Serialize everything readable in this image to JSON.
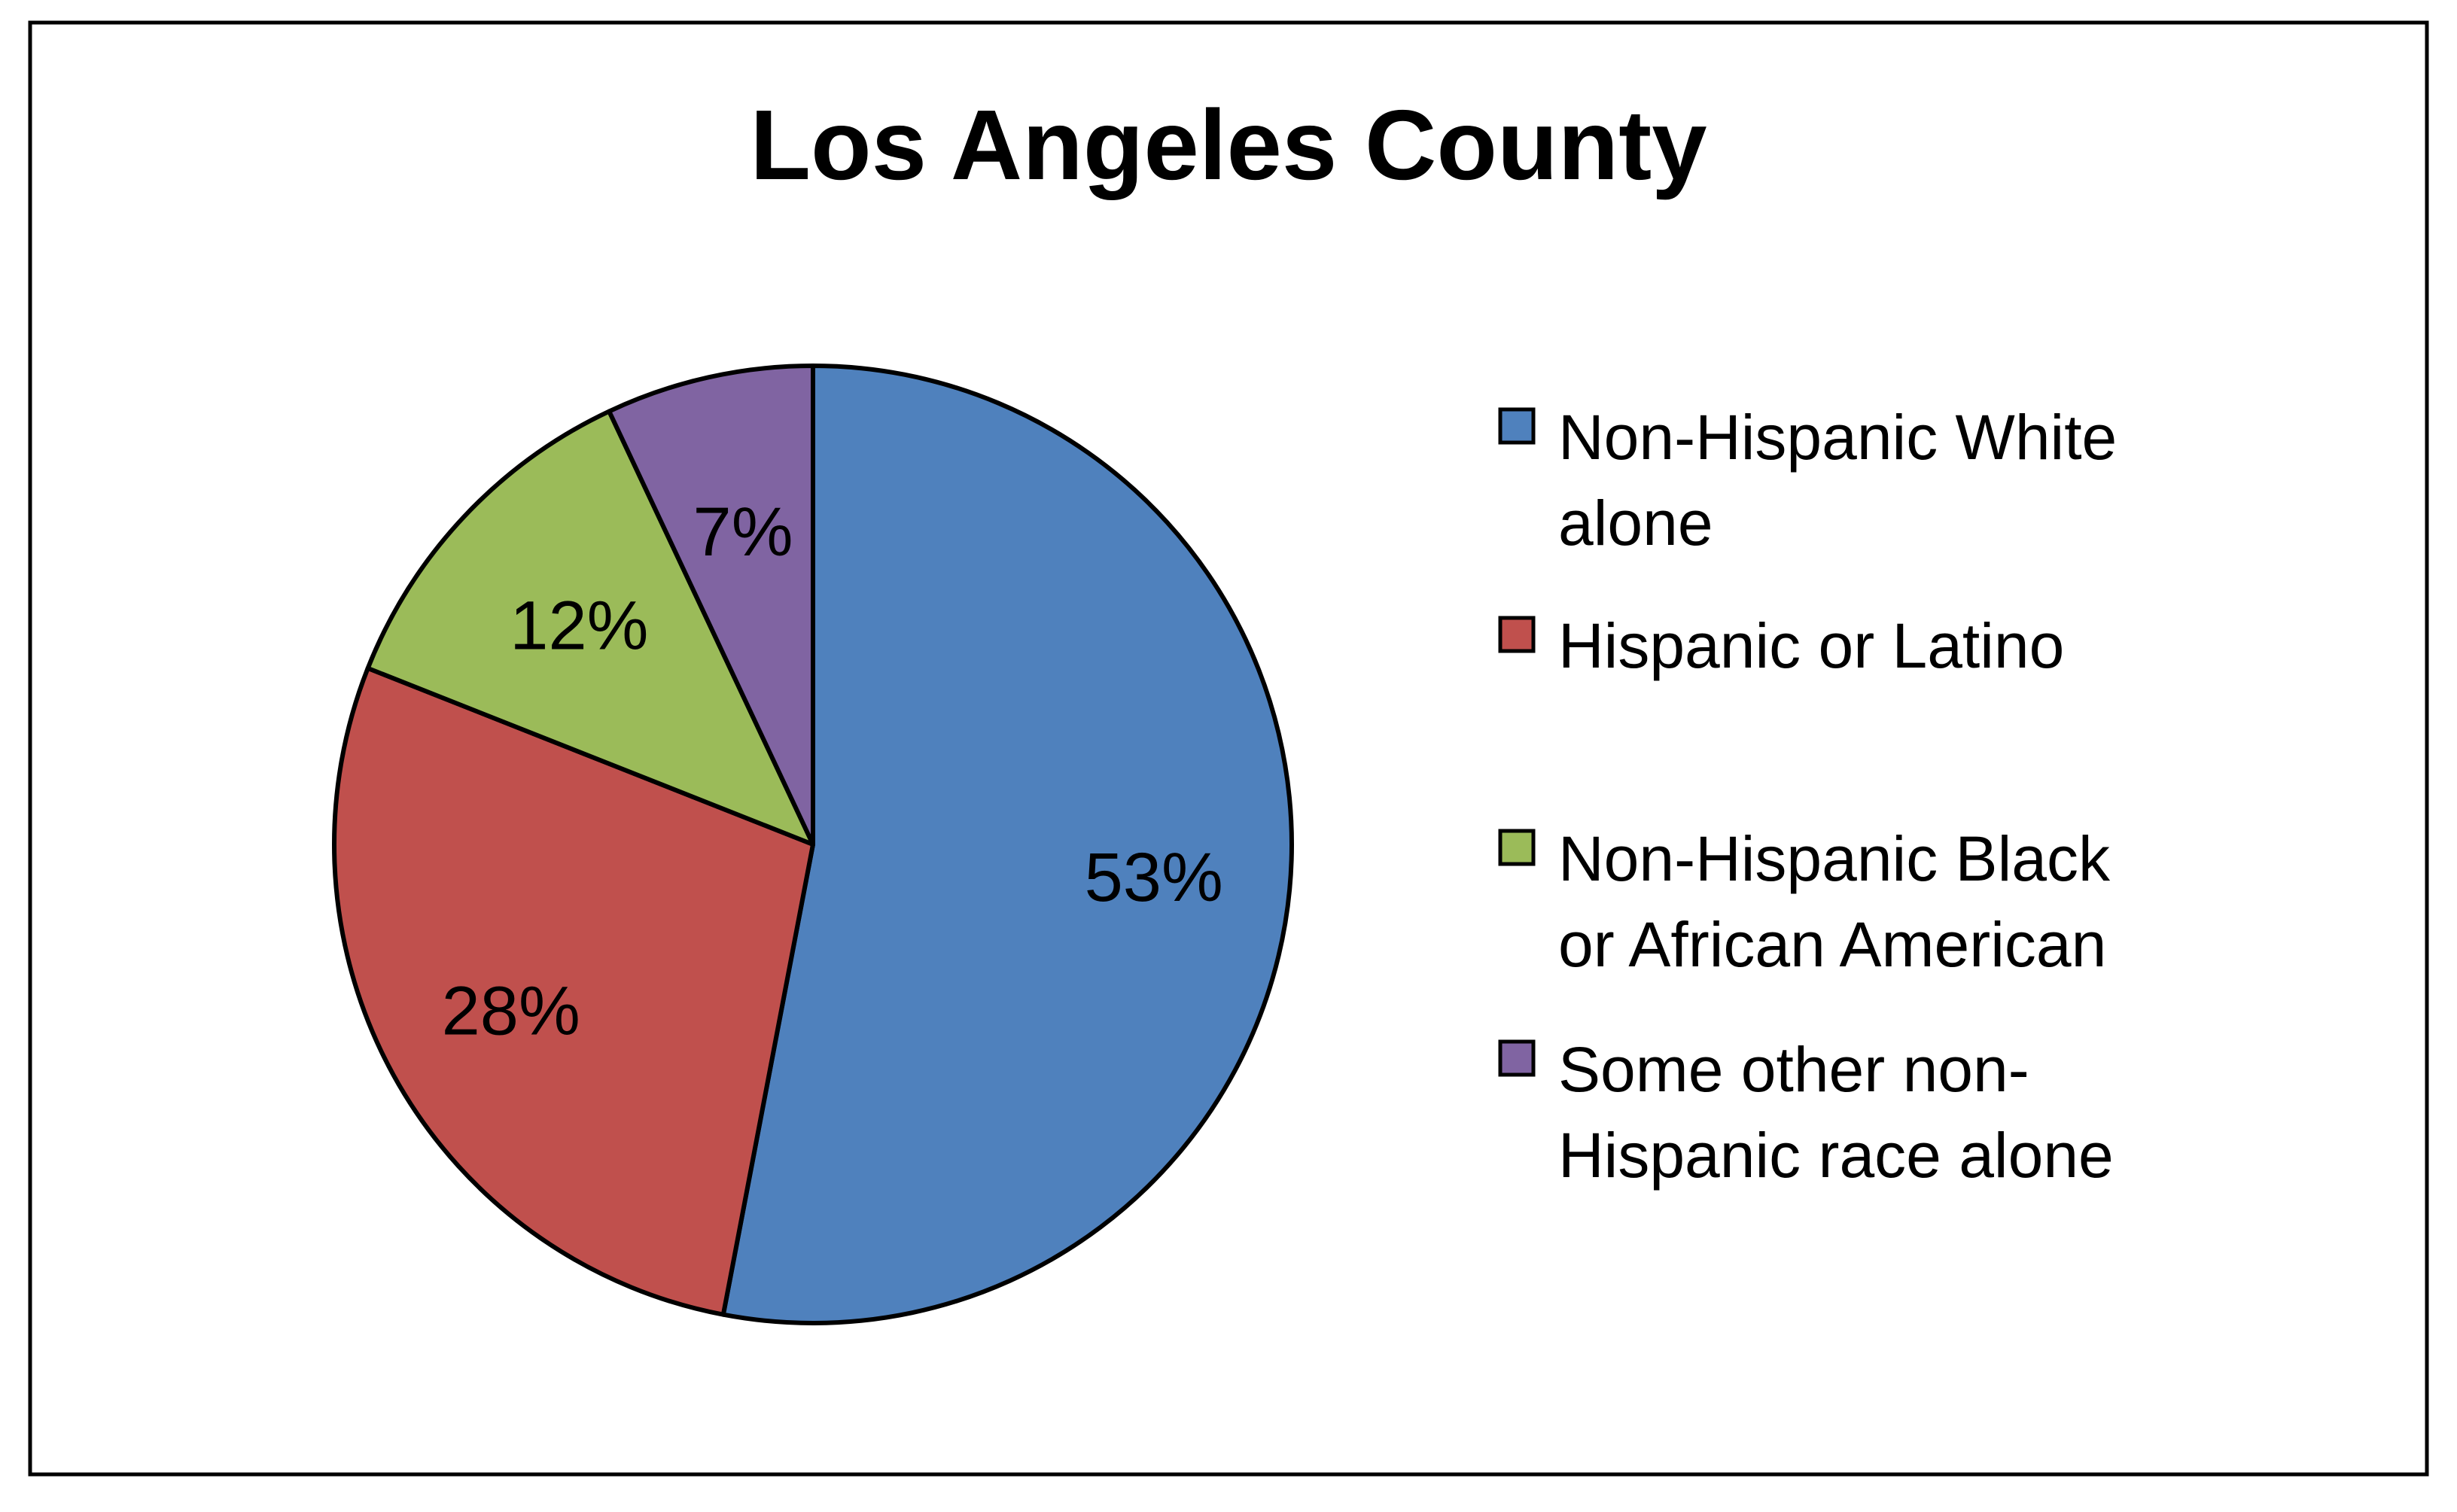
{
  "chart_data": {
    "type": "pie",
    "title": "Los Angeles County",
    "categories": [
      "Non-Hispanic White alone",
      "Hispanic or Latino",
      "Non-Hispanic Black or African American",
      "Some other non-Hispanic race alone"
    ],
    "values": [
      53,
      28,
      12,
      7
    ],
    "data_labels": [
      "53%",
      "28%",
      "12%",
      "7%"
    ],
    "legend": {
      "position": "right",
      "entries": [
        {
          "lines": [
            "Non-Hispanic White",
            "alone"
          ]
        },
        {
          "lines": [
            "Hispanic or Latino"
          ]
        },
        {
          "lines": [
            "Non-Hispanic Black",
            "or African American"
          ]
        },
        {
          "lines": [
            "Some other non-",
            "Hispanic race alone"
          ]
        }
      ]
    },
    "colors": [
      "#4F81BD",
      "#C0504D",
      "#9BBB59",
      "#8064A2"
    ]
  }
}
